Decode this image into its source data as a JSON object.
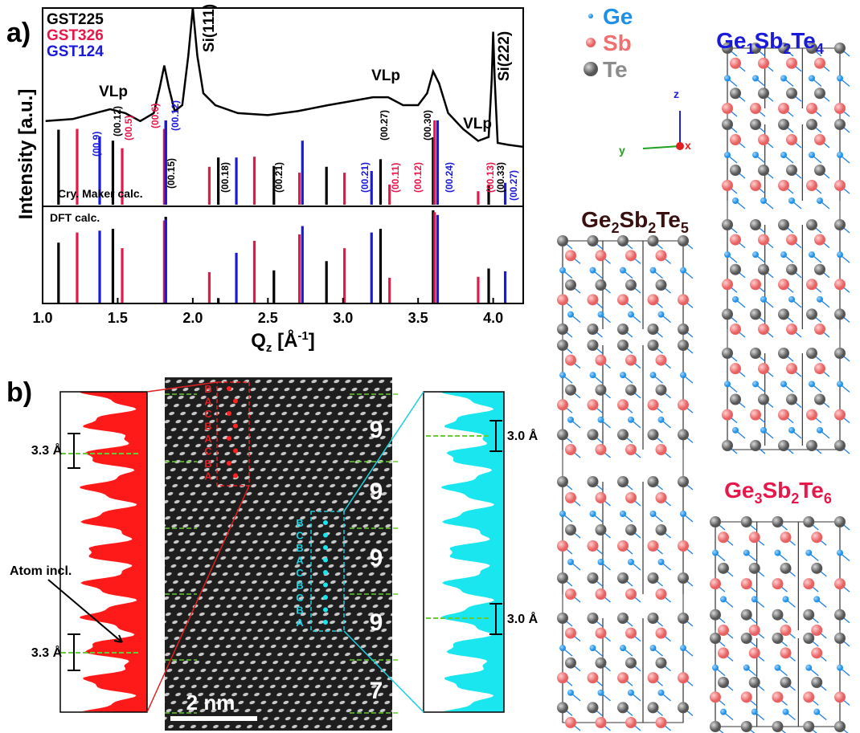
{
  "chart_data": {
    "type": "stick",
    "panel_label": "a)",
    "xlim": [
      1.0,
      4.2
    ],
    "xticks": [
      {
        "value": 1.0,
        "label": "1.0"
      },
      1.5,
      {
        "value": 2.0,
        "label": "2.0"
      },
      2.5,
      {
        "value": 3.0,
        "label": "3.0"
      },
      3.5,
      {
        "value": 4.0,
        "label": "4.0"
      }
    ],
    "ylim": [
      0,
      1
    ],
    "y_label": "Intensity [a.u.]",
    "x_label": {
      "main": "Q",
      "sub": "z",
      "unit": " [Å",
      "sup": "-1",
      "end": "]"
    },
    "curve": {
      "name": "experiment",
      "color": "#000000",
      "x": [
        1.02,
        1.2,
        1.35,
        1.45,
        1.55,
        1.65,
        1.74,
        1.78,
        1.81,
        1.84,
        1.88,
        1.93,
        1.97,
        2.0,
        2.03,
        2.07,
        2.15,
        2.3,
        2.5,
        2.7,
        2.9,
        3.05,
        3.2,
        3.3,
        3.4,
        3.5,
        3.56,
        3.6,
        3.64,
        3.7,
        3.8,
        3.9,
        3.97,
        3.99,
        4.0,
        4.01,
        4.03,
        4.1,
        4.2
      ],
      "values": [
        0.43,
        0.44,
        0.47,
        0.49,
        0.47,
        0.43,
        0.47,
        0.6,
        0.71,
        0.6,
        0.48,
        0.51,
        0.76,
        1.0,
        0.76,
        0.57,
        0.51,
        0.47,
        0.46,
        0.48,
        0.51,
        0.53,
        0.55,
        0.55,
        0.51,
        0.51,
        0.57,
        0.68,
        0.62,
        0.47,
        0.39,
        0.33,
        0.35,
        0.64,
        0.88,
        0.64,
        0.32,
        0.31,
        0.3
      ]
    },
    "series": [
      {
        "name": "GST225",
        "color": "#000000",
        "x": [
          1.106,
          1.468,
          1.82,
          2.17,
          2.54,
          2.89,
          3.25,
          3.6,
          3.97
        ],
        "cry_maker": [
          0.89,
          0.76,
          1.0,
          0.56,
          0.46,
          0.45,
          0.54,
          0.8,
          0.24
        ],
        "dft": [
          0.65,
          0.8,
          0.93,
          0.05,
          0.35,
          0.45,
          0.8,
          1.0,
          0.37
        ]
      },
      {
        "name": "GST326",
        "color": "#e8174a",
        "x": [
          1.23,
          1.53,
          1.81,
          2.11,
          2.41,
          2.71,
          3.01,
          3.31,
          3.61,
          3.9
        ],
        "cry_maker": [
          0.9,
          0.67,
          0.9,
          0.45,
          0.57,
          0.38,
          0.38,
          0.24,
          1.0,
          0.16
        ],
        "dft": [
          0.76,
          0.59,
          0.89,
          0.33,
          0.67,
          0.74,
          0.59,
          0.27,
          0.98,
          0.28
        ]
      },
      {
        "name": "GST124",
        "color": "#1a1adc",
        "x": [
          1.38,
          1.82,
          2.29,
          2.73,
          3.19,
          3.63,
          4.08
        ],
        "cry_maker": [
          0.81,
          1.0,
          0.56,
          0.76,
          0.4,
          1.0,
          0.26
        ],
        "dft": [
          0.78,
          0.9,
          0.54,
          0.83,
          0.76,
          0.95,
          0.34
        ]
      }
    ],
    "peak_labels": [
      "VLp",
      "VLp",
      "VLp",
      "Si(111)",
      "Si(222)"
    ],
    "section_labels": [
      "Cry. Maker calc.",
      "DFT calc."
    ],
    "miller_labels": [
      {
        "text": "(00.9)",
        "series": 2
      },
      {
        "text": "(00.12)",
        "series": 0
      },
      {
        "text": "(00.5)",
        "series": 1
      },
      {
        "text": "(00.6)",
        "series": 1
      },
      {
        "text": "(00.12)",
        "series": 2
      },
      {
        "text": "(00.15)",
        "series": 0
      },
      {
        "text": "(00.18)",
        "series": 0
      },
      {
        "text": "(00.21)",
        "series": 0
      },
      {
        "text": "(00.21)",
        "series": 2
      },
      {
        "text": "(00.27)",
        "series": 0
      },
      {
        "text": "(00.11)",
        "series": 1
      },
      {
        "text": "(00.12)",
        "series": 1
      },
      {
        "text": "(00.30)",
        "series": 0
      },
      {
        "text": "(00.24)",
        "series": 2
      },
      {
        "text": "(00.13)",
        "series": 1
      },
      {
        "text": "(00.33)",
        "series": 0
      },
      {
        "text": "(00.27)",
        "series": 2
      }
    ]
  },
  "panel_b": {
    "panel_label": "b)",
    "left_spacings": [
      "3.3 Å",
      "3.3 Å"
    ],
    "right_spacings": [
      "3.0 Å",
      "3.0 Å"
    ],
    "annotation": "Atom incl.",
    "block_counts": [
      "9",
      "9",
      "9",
      "9",
      "7"
    ],
    "scale_bar": "2 nm",
    "red_stacking": [
      "B",
      "A",
      "C",
      "B",
      "A",
      "C",
      "B",
      "A"
    ],
    "cyan_stacking": [
      "B",
      "C",
      "B",
      "A",
      "C",
      "B",
      "C",
      "B",
      "A"
    ]
  },
  "structures": {
    "legend": [
      {
        "text": "Ge",
        "color": "#1e90e8"
      },
      {
        "text": "Sb",
        "color": "#f07070"
      },
      {
        "text": "Te",
        "color": "#8c8c8c"
      }
    ],
    "axes": [
      "z",
      "y",
      "x"
    ],
    "phases": [
      {
        "parts": [
          "Ge",
          "1",
          "Sb",
          "2",
          "Te",
          "4"
        ],
        "color": "#1a1adc"
      },
      {
        "parts": [
          "Ge",
          "2",
          "Sb",
          "2",
          "Te",
          "5"
        ],
        "color": "#3a1010"
      },
      {
        "parts": [
          "Ge",
          "3",
          "Sb",
          "2",
          "Te",
          "6"
        ],
        "color": "#e8174a"
      }
    ]
  }
}
